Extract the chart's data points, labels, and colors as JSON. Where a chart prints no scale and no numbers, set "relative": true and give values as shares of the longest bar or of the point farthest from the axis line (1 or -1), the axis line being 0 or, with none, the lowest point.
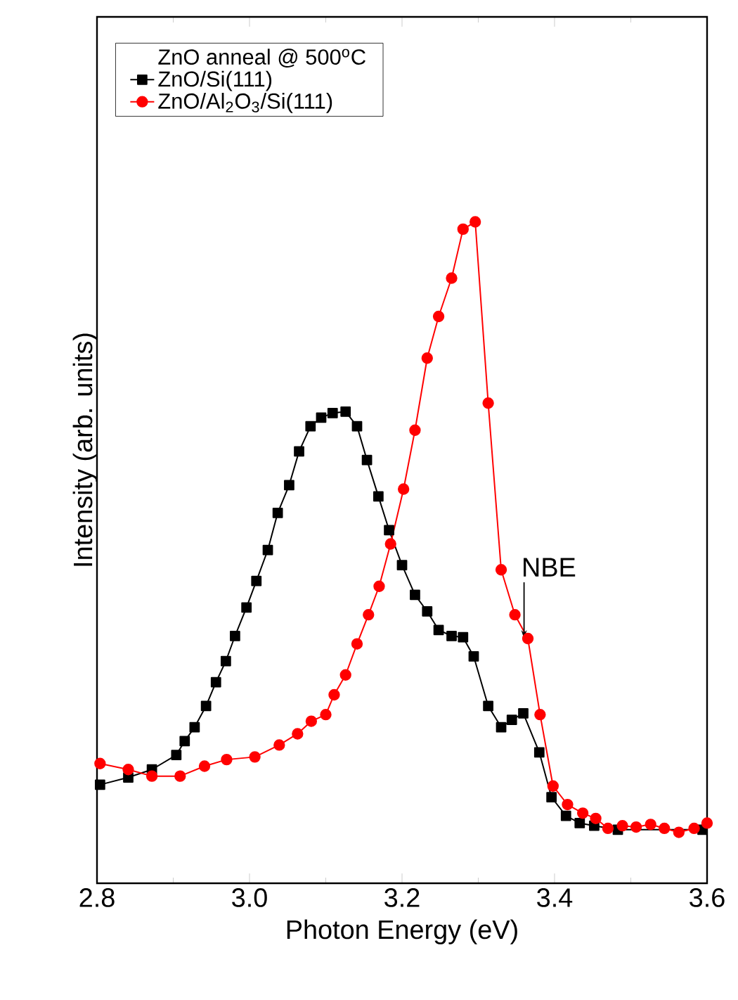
{
  "chart_data": {
    "type": "line",
    "xlabel": "Photon Energy (eV)",
    "ylabel": "Intensity (arb. units)",
    "legend_title": "ZnO anneal @ 500$^{o}$C",
    "relative": true,
    "xlim": [
      2.8,
      3.6
    ],
    "xticks": [
      {
        "value": 2.8,
        "label": "2.8"
      },
      {
        "value": 3.0,
        "label": "3.0"
      },
      {
        "value": 3.2,
        "label": "3.2"
      },
      {
        "value": 3.4,
        "label": "3.4"
      },
      {
        "value": 3.6,
        "label": "3.6"
      }
    ],
    "legend": "top left",
    "line_style": "solid",
    "grid": false,
    "annotations": [
      {
        "text": "NBE",
        "x": 3.36,
        "y": 0.37
      }
    ],
    "series": [
      {
        "name": "ZnO/Si(111)",
        "color": "#000000",
        "marker": "square",
        "x": [
          2.804,
          2.841,
          2.872,
          2.904,
          2.915,
          2.928,
          2.943,
          2.956,
          2.969,
          2.981,
          2.996,
          3.009,
          3.024,
          3.037,
          3.052,
          3.065,
          3.08,
          3.094,
          3.109,
          3.126,
          3.141,
          3.154,
          3.169,
          3.183,
          3.2,
          3.217,
          3.233,
          3.248,
          3.265,
          3.28,
          3.294,
          3.313,
          3.33,
          3.344,
          3.359,
          3.38,
          3.396,
          3.415,
          3.433,
          3.452,
          3.483,
          3.594
        ],
        "values": [
          0.149,
          0.16,
          0.172,
          0.194,
          0.215,
          0.236,
          0.268,
          0.304,
          0.336,
          0.374,
          0.417,
          0.457,
          0.504,
          0.56,
          0.602,
          0.653,
          0.691,
          0.704,
          0.711,
          0.713,
          0.691,
          0.64,
          0.585,
          0.534,
          0.481,
          0.436,
          0.411,
          0.383,
          0.374,
          0.372,
          0.343,
          0.268,
          0.236,
          0.247,
          0.257,
          0.198,
          0.13,
          0.102,
          0.091,
          0.087,
          0.081,
          0.081
        ]
      },
      {
        "name": "ZnO/Al$_{2}$O$_{3}$/Si(111)",
        "color": "#ff0000",
        "marker": "circle",
        "x": [
          2.804,
          2.841,
          2.872,
          2.909,
          2.941,
          2.97,
          3.007,
          3.039,
          3.063,
          3.081,
          3.1,
          3.111,
          3.126,
          3.141,
          3.156,
          3.17,
          3.185,
          3.202,
          3.217,
          3.233,
          3.248,
          3.265,
          3.28,
          3.296,
          3.313,
          3.33,
          3.348,
          3.365,
          3.381,
          3.398,
          3.417,
          3.437,
          3.454,
          3.47,
          3.489,
          3.507,
          3.526,
          3.544,
          3.563,
          3.583,
          3.6
        ],
        "values": [
          0.181,
          0.172,
          0.162,
          0.162,
          0.177,
          0.187,
          0.191,
          0.209,
          0.226,
          0.245,
          0.255,
          0.285,
          0.315,
          0.362,
          0.406,
          0.449,
          0.513,
          0.596,
          0.685,
          0.794,
          0.857,
          0.915,
          0.989,
          1.0,
          0.726,
          0.474,
          0.406,
          0.37,
          0.255,
          0.147,
          0.119,
          0.106,
          0.098,
          0.083,
          0.087,
          0.085,
          0.089,
          0.083,
          0.077,
          0.083,
          0.091
        ]
      }
    ]
  }
}
